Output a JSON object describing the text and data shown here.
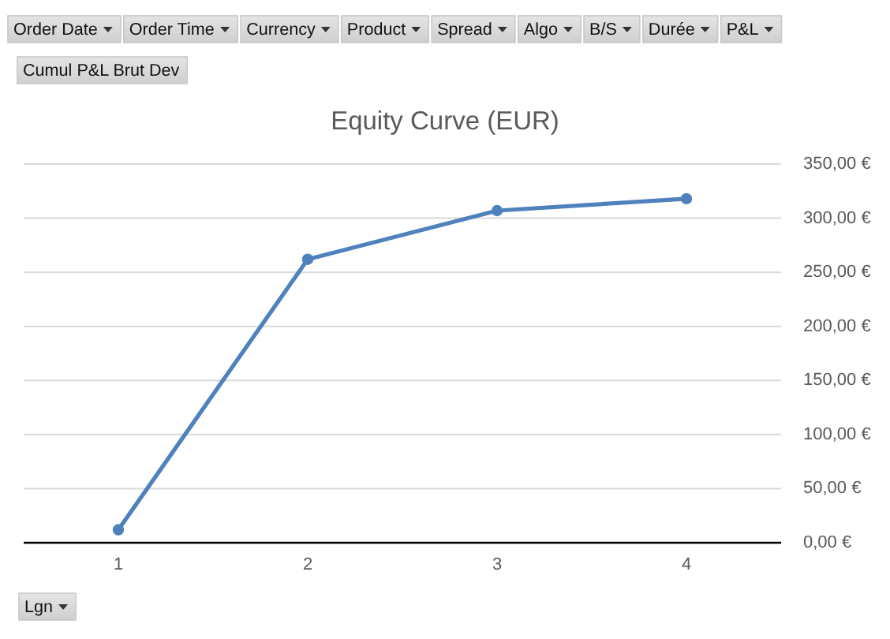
{
  "chart_data": {
    "type": "line",
    "title": "Equity Curve (EUR)",
    "xlabel": "Lgn",
    "ylabel": "Cumul P&L Brut Dev",
    "annotations": [
      "Order Date",
      "Order Time",
      "Currency",
      "Product",
      "Spread",
      "Algo",
      "B/S",
      "Durée",
      "P&L"
    ],
    "categories": [
      "1",
      "2",
      "3",
      "4"
    ],
    "series": [
      {
        "color": "#4f81bd",
        "values": [
          12,
          262,
          307,
          318
        ]
      }
    ],
    "ylim": [
      0,
      350
    ],
    "yticks": [
      {
        "value": 0,
        "label": "0,00 €"
      },
      {
        "value": 50,
        "label": "50,00 €"
      },
      {
        "value": 100,
        "label": "100,00 €"
      },
      {
        "value": 150,
        "label": "150,00 €"
      },
      {
        "value": 200,
        "label": "200,00 €"
      },
      {
        "value": 250,
        "label": "250,00 €"
      },
      {
        "value": 300,
        "label": "300,00 €"
      },
      {
        "value": 350,
        "label": "350,00 €"
      }
    ],
    "grid": "y",
    "marker": "circle",
    "line_style": "solid"
  }
}
